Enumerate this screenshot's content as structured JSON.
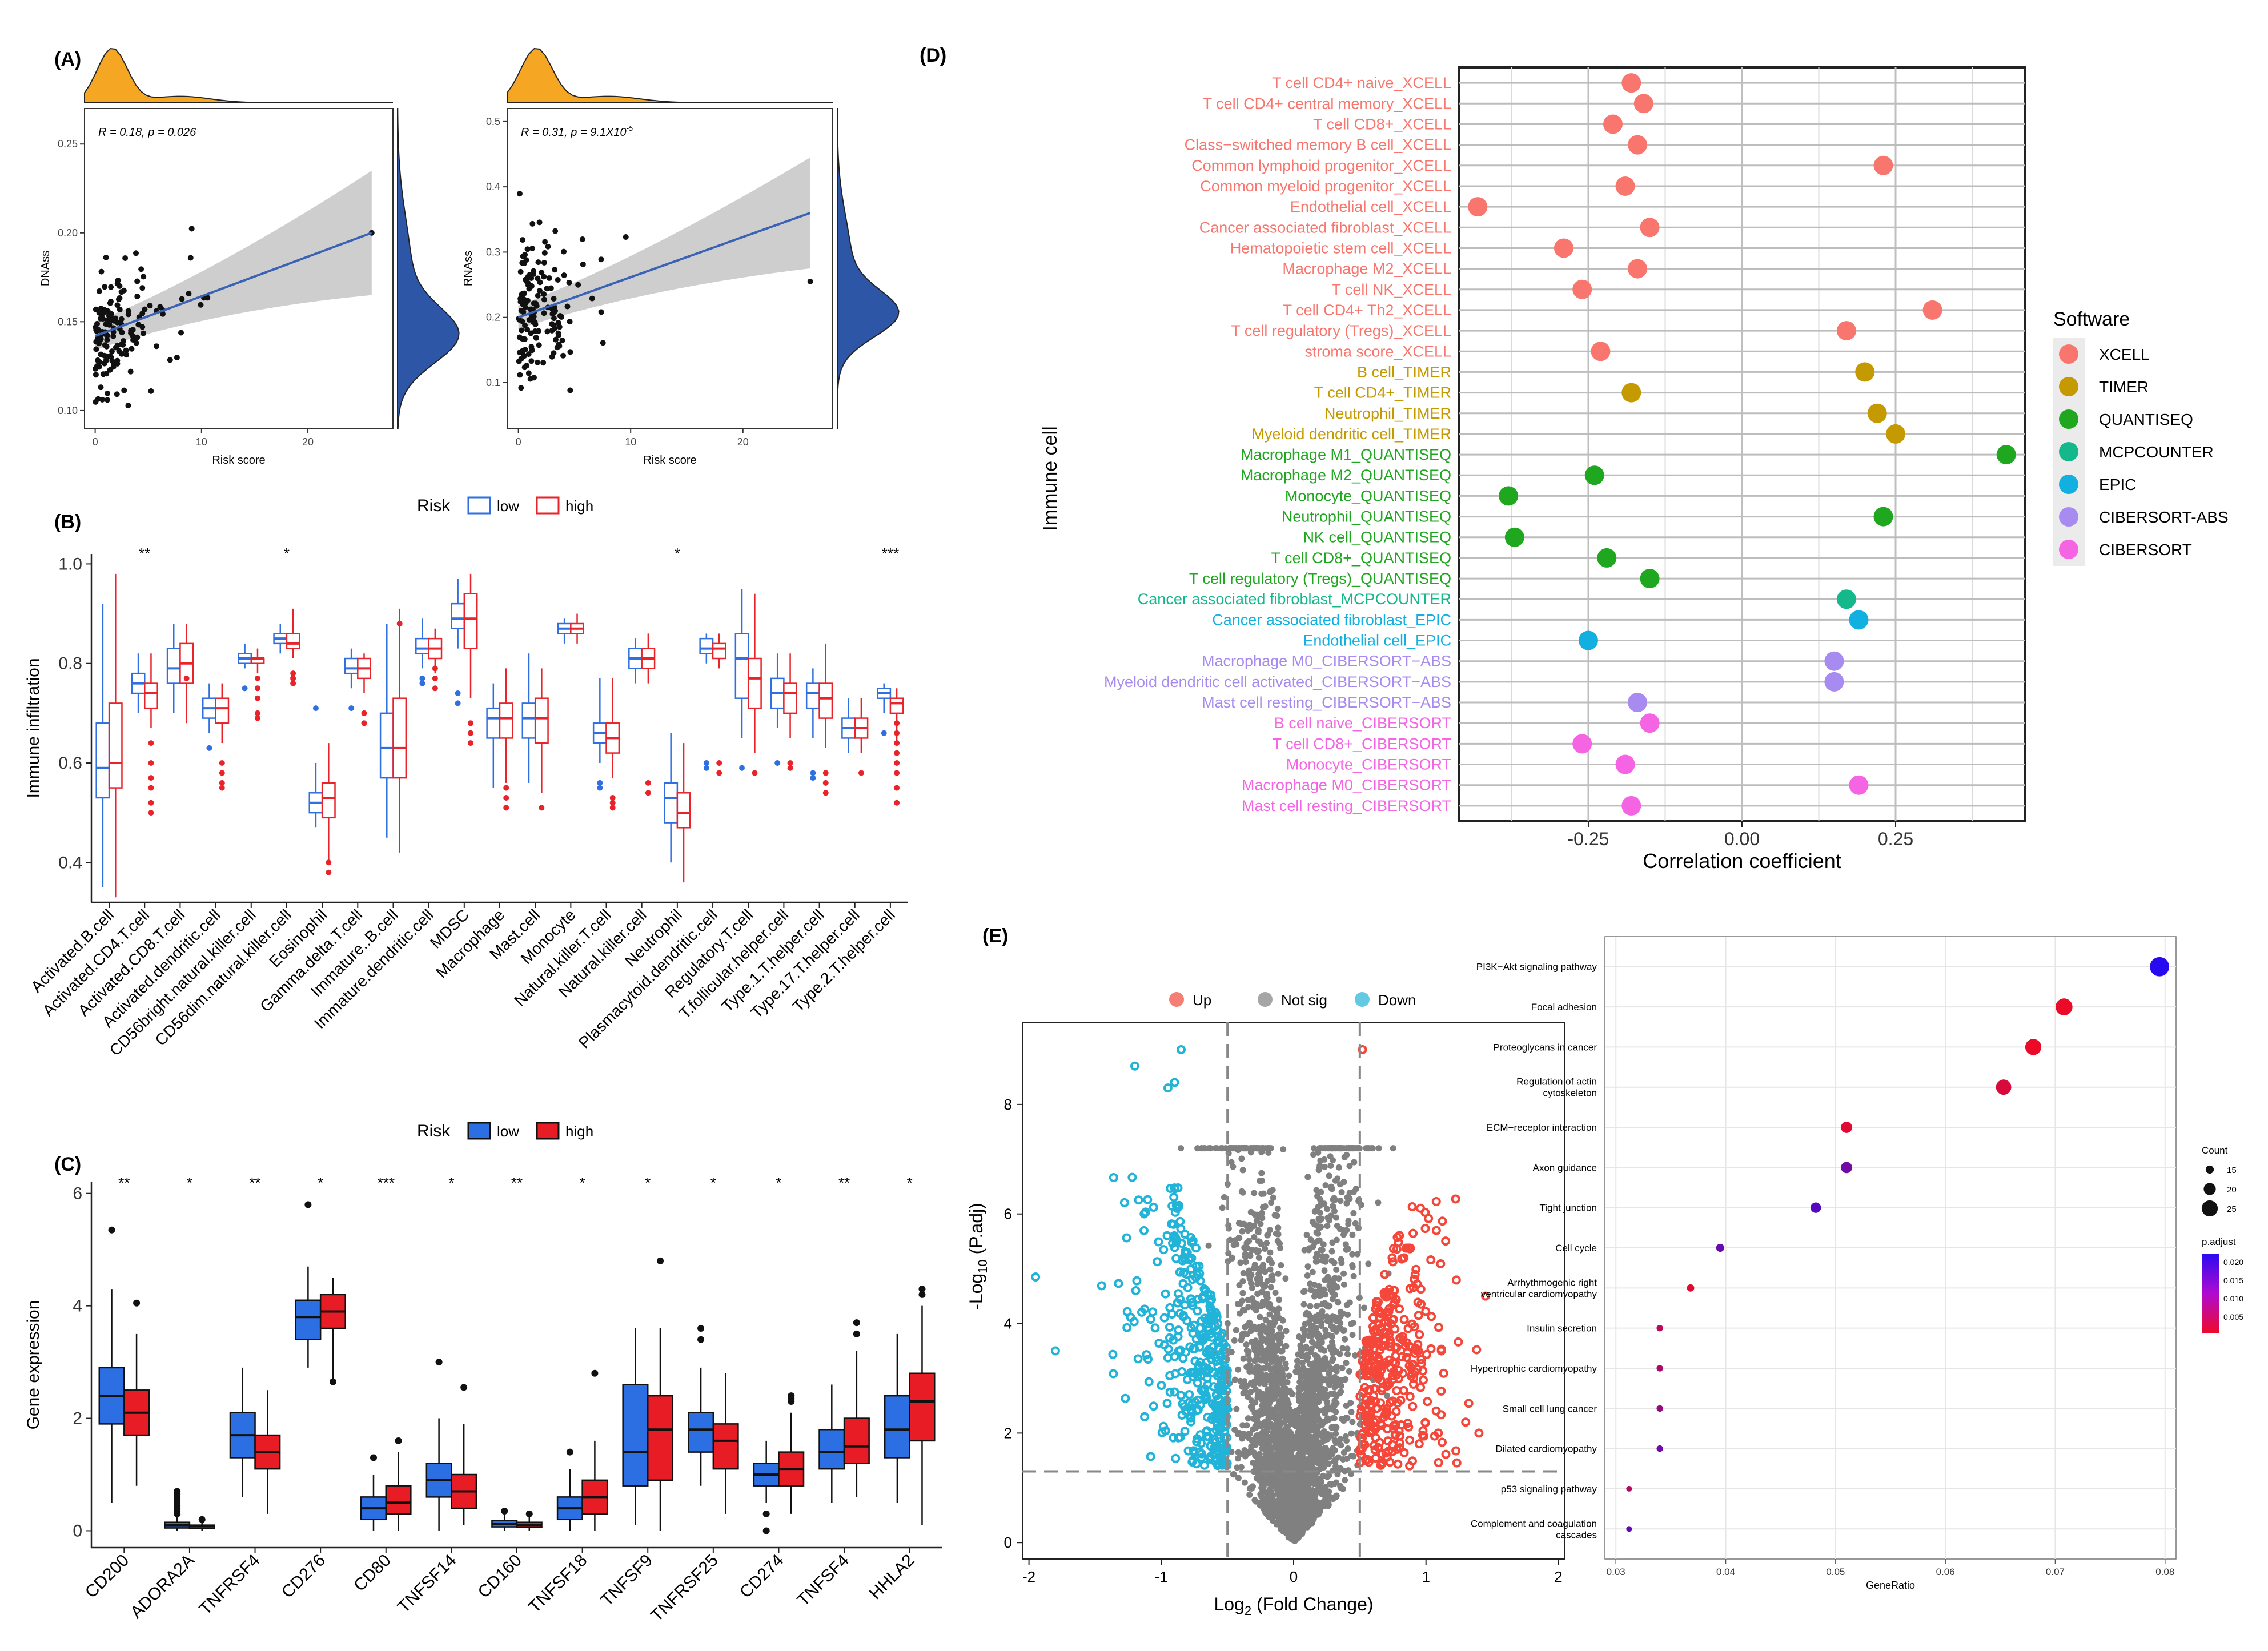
{
  "panels": {
    "A": "(A)",
    "B": "(B)",
    "C": "(C)",
    "D": "(D)",
    "E": "(E)"
  },
  "colors": {
    "orange": "#f5a623",
    "blue": "#2e56a6",
    "low_b": "#2f6fe0",
    "high_b": "#e8232a",
    "low_c": "#2b6fe3",
    "high_c": "#e81c25",
    "up": "#f4473a",
    "down": "#22b4d8",
    "ns": "#808080"
  },
  "chart_data": [
    {
      "id": "A1",
      "type": "scatter",
      "xlabel": "Risk score",
      "ylabel": "DNAss",
      "xlim": [
        -1,
        28
      ],
      "ylim": [
        0.09,
        0.27
      ],
      "xticks": [
        "0",
        "10",
        "20"
      ],
      "yticks": [
        "0.10",
        "0.15",
        "0.20",
        "0.25"
      ],
      "annotation_R": "R = 0.18,",
      "annotation_p": "p = 0.026",
      "fit": {
        "x0": 0,
        "y0": 0.142,
        "x1": 26,
        "y1": 0.2
      }
    },
    {
      "id": "A2",
      "type": "scatter",
      "xlabel": "Risk score",
      "ylabel": "RNAss",
      "xlim": [
        -1,
        28
      ],
      "ylim": [
        0.03,
        0.52
      ],
      "xticks": [
        "0",
        "10",
        "20"
      ],
      "yticks": [
        "0.1",
        "0.2",
        "0.3",
        "0.4",
        "0.5"
      ],
      "annotation_R": "R = 0.31,",
      "annotation_p": "p = 9.1X10",
      "annotation_exp": "-5",
      "fit": {
        "x0": 0,
        "y0": 0.2,
        "x1": 26,
        "y1": 0.36
      }
    },
    {
      "id": "B",
      "type": "box",
      "ylabel": "Immune infiltration",
      "ylim": [
        0.32,
        1.02
      ],
      "yticks": [
        "0.4",
        "0.6",
        "0.8",
        "1.0"
      ],
      "legend_title": "Risk",
      "legend": [
        "low",
        "high"
      ],
      "categories": [
        "Activated.B.cell",
        "Activated.CD4.T.cell",
        "Activated.CD8.T.cell",
        "Activated.dendritic.cell",
        "CD56bright.natural.killer.cell",
        "CD56dim.natural.killer.cell",
        "Eosinophil",
        "Gamma.delta.T.cell",
        "Immature..B.cell",
        "Immature.dendritic.cell",
        "MDSC",
        "Macrophage",
        "Mast.cell",
        "Monocyte",
        "Natural.killer.T.cell",
        "Natural.killer.cell",
        "Neutrophil",
        "Plasmacytoid.dendritic.cell",
        "Regulatory.T.cell",
        "T.follicular.helper.cell",
        "Type.1.T.helper.cell",
        "Type.17.T.helper.cell",
        "Type.2.T.helper.cell"
      ],
      "signif": [
        "",
        "**",
        "",
        "",
        "",
        "*",
        "",
        "",
        "",
        "",
        "",
        "",
        "",
        "",
        "",
        "",
        "*",
        "",
        "",
        "",
        "",
        "",
        "***"
      ],
      "low": [
        [
          0.35,
          0.53,
          0.59,
          0.68,
          0.92
        ],
        [
          0.7,
          0.74,
          0.76,
          0.78,
          0.82
        ],
        [
          0.7,
          0.76,
          0.79,
          0.83,
          0.88
        ],
        [
          0.66,
          0.69,
          0.71,
          0.73,
          0.76
        ],
        [
          0.79,
          0.8,
          0.81,
          0.82,
          0.84
        ],
        [
          0.82,
          0.84,
          0.85,
          0.86,
          0.88
        ],
        [
          0.47,
          0.5,
          0.52,
          0.54,
          0.6
        ],
        [
          0.75,
          0.78,
          0.79,
          0.81,
          0.83
        ],
        [
          0.45,
          0.57,
          0.63,
          0.7,
          0.88
        ],
        [
          0.79,
          0.82,
          0.83,
          0.85,
          0.89
        ],
        [
          0.83,
          0.87,
          0.89,
          0.92,
          0.97
        ],
        [
          0.55,
          0.65,
          0.69,
          0.71,
          0.76
        ],
        [
          0.56,
          0.65,
          0.69,
          0.72,
          0.82
        ],
        [
          0.84,
          0.86,
          0.87,
          0.88,
          0.89
        ],
        [
          0.6,
          0.64,
          0.66,
          0.68,
          0.77
        ],
        [
          0.76,
          0.79,
          0.81,
          0.83,
          0.85
        ],
        [
          0.4,
          0.48,
          0.53,
          0.56,
          0.66
        ],
        [
          0.8,
          0.82,
          0.83,
          0.85,
          0.86
        ],
        [
          0.65,
          0.73,
          0.81,
          0.86,
          0.95
        ],
        [
          0.67,
          0.71,
          0.74,
          0.77,
          0.82
        ],
        [
          0.65,
          0.71,
          0.74,
          0.76,
          0.79
        ],
        [
          0.62,
          0.65,
          0.67,
          0.69,
          0.73
        ],
        [
          0.7,
          0.73,
          0.74,
          0.75,
          0.76
        ]
      ],
      "high": [
        [
          0.33,
          0.55,
          0.6,
          0.72,
          0.98
        ],
        [
          0.67,
          0.71,
          0.74,
          0.76,
          0.82
        ],
        [
          0.68,
          0.76,
          0.8,
          0.84,
          0.88
        ],
        [
          0.64,
          0.68,
          0.71,
          0.73,
          0.76
        ],
        [
          0.78,
          0.8,
          0.81,
          0.81,
          0.83
        ],
        [
          0.81,
          0.83,
          0.84,
          0.86,
          0.91
        ],
        [
          0.4,
          0.49,
          0.53,
          0.56,
          0.64
        ],
        [
          0.74,
          0.77,
          0.79,
          0.81,
          0.82
        ],
        [
          0.42,
          0.57,
          0.63,
          0.73,
          0.91
        ],
        [
          0.78,
          0.81,
          0.83,
          0.85,
          0.87
        ],
        [
          0.73,
          0.83,
          0.89,
          0.94,
          0.98
        ],
        [
          0.56,
          0.65,
          0.69,
          0.72,
          0.79
        ],
        [
          0.54,
          0.64,
          0.69,
          0.73,
          0.79
        ],
        [
          0.84,
          0.86,
          0.87,
          0.88,
          0.9
        ],
        [
          0.57,
          0.62,
          0.65,
          0.68,
          0.77
        ],
        [
          0.76,
          0.79,
          0.81,
          0.83,
          0.86
        ],
        [
          0.36,
          0.47,
          0.5,
          0.54,
          0.64
        ],
        [
          0.79,
          0.81,
          0.83,
          0.84,
          0.86
        ],
        [
          0.62,
          0.71,
          0.77,
          0.81,
          0.94
        ],
        [
          0.65,
          0.7,
          0.74,
          0.76,
          0.82
        ],
        [
          0.63,
          0.69,
          0.73,
          0.76,
          0.84
        ],
        [
          0.62,
          0.65,
          0.67,
          0.69,
          0.73
        ],
        [
          0.64,
          0.7,
          0.72,
          0.73,
          0.75
        ]
      ],
      "out_low": [
        [],
        [],
        [],
        [
          0.63
        ],
        [
          0.75
        ],
        [],
        [
          0.71
        ],
        [
          0.71
        ],
        [],
        [
          0.76,
          0.77
        ],
        [
          0.74,
          0.72
        ],
        [],
        [],
        [],
        [
          0.55,
          0.56
        ],
        [],
        [],
        [
          0.59,
          0.6
        ],
        [
          0.59
        ],
        [
          0.6
        ],
        [
          0.58,
          0.57
        ],
        [],
        [
          0.66
        ]
      ],
      "out_high": [
        [],
        [
          0.64,
          0.6,
          0.57,
          0.55,
          0.52,
          0.5
        ],
        [
          0.77
        ],
        [
          0.6,
          0.58,
          0.56,
          0.55
        ],
        [
          0.77,
          0.75,
          0.73,
          0.7,
          0.69
        ],
        [
          0.78,
          0.77,
          0.76
        ],
        [
          0.4,
          0.38
        ],
        [
          0.7,
          0.68
        ],
        [
          0.88
        ],
        [
          0.79,
          0.77,
          0.75
        ],
        [
          0.68,
          0.66,
          0.64
        ],
        [
          0.55,
          0.53,
          0.51
        ],
        [
          0.51
        ],
        [],
        [
          0.52,
          0.51,
          0.53
        ],
        [
          0.56,
          0.54
        ],
        [],
        [
          0.6,
          0.58
        ],
        [
          0.58
        ],
        [
          0.59,
          0.6
        ],
        [
          0.54,
          0.56,
          0.58
        ],
        [
          0.58
        ],
        [
          0.68,
          0.66,
          0.64,
          0.62,
          0.6,
          0.58,
          0.55,
          0.52
        ]
      ]
    },
    {
      "id": "C",
      "type": "box",
      "ylabel": "Gene expression",
      "ylim": [
        -0.3,
        6.2
      ],
      "yticks": [
        "0",
        "2",
        "4",
        "6"
      ],
      "legend_title": "Risk",
      "legend": [
        "low",
        "high"
      ],
      "categories": [
        "CD200",
        "ADORA2A",
        "TNFRSF4",
        "CD276",
        "CD80",
        "TNFSF14",
        "CD160",
        "TNFSF18",
        "TNFSF9",
        "TNFRSF25",
        "CD274",
        "TNFSF4",
        "HHLA2"
      ],
      "signif": [
        "**",
        "*",
        "**",
        "*",
        "***",
        "*",
        "**",
        "*",
        "*",
        "*",
        "*",
        "**",
        "*"
      ],
      "low": [
        [
          0.5,
          1.9,
          2.4,
          2.9,
          4.3
        ],
        [
          0.0,
          0.05,
          0.1,
          0.15,
          0.25
        ],
        [
          0.6,
          1.3,
          1.7,
          2.1,
          2.9
        ],
        [
          2.9,
          3.4,
          3.8,
          4.1,
          4.7
        ],
        [
          0.0,
          0.2,
          0.4,
          0.6,
          1.0
        ],
        [
          0.0,
          0.6,
          0.9,
          1.2,
          2.0
        ],
        [
          0.0,
          0.07,
          0.12,
          0.18,
          0.3
        ],
        [
          0.0,
          0.2,
          0.4,
          0.6,
          1.1
        ],
        [
          0.1,
          0.8,
          1.4,
          2.6,
          3.6
        ],
        [
          0.8,
          1.4,
          1.8,
          2.1,
          2.9
        ],
        [
          0.5,
          0.8,
          1.0,
          1.2,
          1.6
        ],
        [
          0.5,
          1.1,
          1.4,
          1.8,
          2.6
        ],
        [
          0.5,
          1.3,
          1.8,
          2.4,
          3.5
        ]
      ],
      "high": [
        [
          0.8,
          1.7,
          2.1,
          2.5,
          3.5
        ],
        [
          0.0,
          0.04,
          0.08,
          0.1,
          0.15
        ],
        [
          0.3,
          1.1,
          1.4,
          1.7,
          2.5
        ],
        [
          2.7,
          3.6,
          3.9,
          4.2,
          4.5
        ],
        [
          0.0,
          0.3,
          0.5,
          0.8,
          1.4
        ],
        [
          0.1,
          0.4,
          0.7,
          1.0,
          1.9
        ],
        [
          0.0,
          0.06,
          0.1,
          0.15,
          0.25
        ],
        [
          0.0,
          0.3,
          0.6,
          0.9,
          1.6
        ],
        [
          0.0,
          0.9,
          1.8,
          2.4,
          3.6
        ],
        [
          0.3,
          1.1,
          1.6,
          1.9,
          2.8
        ],
        [
          0.3,
          0.8,
          1.1,
          1.4,
          2.1
        ],
        [
          0.6,
          1.2,
          1.5,
          2.0,
          3.2
        ],
        [
          0.1,
          1.6,
          2.3,
          2.8,
          4.0
        ]
      ],
      "out_low": [
        [
          5.35
        ],
        [
          0.3,
          0.35,
          0.4,
          0.45,
          0.5,
          0.55,
          0.6,
          0.65,
          0.7
        ],
        [],
        [
          5.8
        ],
        [
          1.3
        ],
        [
          3.0
        ],
        [
          0.35
        ],
        [
          1.4
        ],
        [],
        [
          3.4,
          3.6
        ],
        [
          0.3,
          0.0
        ],
        [],
        []
      ],
      "out_high": [
        [
          4.05
        ],
        [
          0.2
        ],
        [],
        [
          2.65
        ],
        [
          1.6
        ],
        [
          2.55
        ],
        [
          0.3
        ],
        [
          2.8
        ],
        [
          4.8
        ],
        [],
        [
          2.3,
          2.35,
          2.4
        ],
        [
          3.5,
          3.7
        ],
        [
          4.2,
          4.3
        ]
      ]
    },
    {
      "id": "D",
      "type": "scatter",
      "xlabel": "Correlation coefficient",
      "ylabel": "Immune cell",
      "xlim": [
        -0.46,
        0.46
      ],
      "xticks": [
        "-0.25",
        "0.00",
        "0.25"
      ],
      "legend_title": "Software",
      "legend": [
        "XCELL",
        "TIMER",
        "QUANTISEQ",
        "MCPCOUNTER",
        "EPIC",
        "CIBERSORT-ABS",
        "CIBERSORT"
      ],
      "legend_colors": [
        "#f8766d",
        "#c49a00",
        "#1fa71f",
        "#14b88a",
        "#12b0e0",
        "#a78bf0",
        "#f564e3"
      ],
      "labels": [
        "T cell CD4+ naive_XCELL",
        "T cell CD4+ central memory_XCELL",
        "T cell CD8+_XCELL",
        "Class−switched memory B cell_XCELL",
        "Common lymphoid progenitor_XCELL",
        "Common myeloid progenitor_XCELL",
        "Endothelial cell_XCELL",
        "Cancer associated fibroblast_XCELL",
        "Hematopoietic stem cell_XCELL",
        "Macrophage M2_XCELL",
        "T cell NK_XCELL",
        "T cell CD4+ Th2_XCELL",
        "T cell regulatory (Tregs)_XCELL",
        "stroma score_XCELL",
        "B cell_TIMER",
        "T cell CD4+_TIMER",
        "Neutrophil_TIMER",
        "Myeloid dendritic cell_TIMER",
        "Macrophage M1_QUANTISEQ",
        "Macrophage M2_QUANTISEQ",
        "Monocyte_QUANTISEQ",
        "Neutrophil_QUANTISEQ",
        "NK cell_QUANTISEQ",
        "T cell CD8+_QUANTISEQ",
        "T cell regulatory (Tregs)_QUANTISEQ",
        "Cancer associated fibroblast_MCPCOUNTER",
        "Cancer associated fibroblast_EPIC",
        "Endothelial cell_EPIC",
        "Macrophage M0_CIBERSORT−ABS",
        "Myeloid dendritic cell activated_CIBERSORT−ABS",
        "Mast cell resting_CIBERSORT−ABS",
        "B cell naive_CIBERSORT",
        "T cell CD8+_CIBERSORT",
        "Monocyte_CIBERSORT",
        "Macrophage M0_CIBERSORT",
        "Mast cell resting_CIBERSORT"
      ],
      "groups": [
        0,
        0,
        0,
        0,
        0,
        0,
        0,
        0,
        0,
        0,
        0,
        0,
        0,
        0,
        1,
        1,
        1,
        1,
        2,
        2,
        2,
        2,
        2,
        2,
        2,
        3,
        4,
        4,
        5,
        5,
        5,
        6,
        6,
        6,
        6,
        6
      ],
      "values": [
        -0.18,
        -0.16,
        -0.21,
        -0.17,
        0.23,
        -0.19,
        -0.43,
        -0.15,
        -0.29,
        -0.17,
        -0.26,
        0.31,
        0.17,
        -0.23,
        0.2,
        -0.18,
        0.22,
        0.25,
        0.43,
        -0.24,
        -0.38,
        0.23,
        -0.37,
        -0.22,
        -0.15,
        0.17,
        0.19,
        -0.25,
        0.15,
        0.15,
        -0.17,
        -0.15,
        -0.26,
        -0.19,
        0.19,
        -0.18
      ]
    },
    {
      "id": "E1",
      "type": "scatter",
      "xlabel": "Log",
      "xlabel_sub": "2",
      "xlabel_rest": " (Fold Change)",
      "ylabel": "-Log",
      "ylabel_sub": "10",
      "ylabel_rest": " (P.adj)",
      "xlim": [
        -2.05,
        2.05
      ],
      "ylim": [
        -0.3,
        9.5
      ],
      "xticks": [
        "-2",
        "-1",
        "0",
        "1",
        "2"
      ],
      "yticks": [
        "0",
        "2",
        "4",
        "6",
        "8"
      ],
      "legend": [
        "Up",
        "Not sig",
        "Down"
      ],
      "thresholds": {
        "x": 0.5,
        "y": 1.3
      }
    },
    {
      "id": "E2",
      "type": "scatter",
      "xlabel": "GeneRatio",
      "xlim": [
        0.029,
        0.081
      ],
      "xticks": [
        "0.03",
        "0.04",
        "0.05",
        "0.06",
        "0.07",
        "0.08"
      ],
      "categories": [
        "PI3K−Akt signaling pathway",
        "Focal adhesion",
        "Proteoglycans in cancer",
        "Regulation of actin cytoskeleton",
        "ECM−receptor interaction",
        "Axon guidance",
        "Tight junction",
        "Cell cycle",
        "Arrhythmogenic right ventricular cardiomyopathy",
        "Insulin secretion",
        "Hypertrophic cardiomyopathy",
        "Small cell lung cancer",
        "Dilated cardiomyopathy",
        "p53 signaling pathway",
        "Complement and coagulation cascades"
      ],
      "gene_ratio": [
        0.0795,
        0.0708,
        0.068,
        0.0653,
        0.051,
        0.051,
        0.0482,
        0.0395,
        0.0368,
        0.034,
        0.034,
        0.034,
        0.034,
        0.0312,
        0.0312
      ],
      "count": [
        29,
        26,
        25,
        24,
        19,
        19,
        18,
        15,
        14,
        13,
        13,
        13,
        13,
        12,
        12
      ],
      "p_adjust": [
        0.022,
        0.001,
        0.001,
        0.003,
        0.002,
        0.014,
        0.017,
        0.015,
        0.002,
        0.006,
        0.008,
        0.01,
        0.014,
        0.007,
        0.016
      ],
      "size_legend_title": "Count",
      "size_legend": [
        "15",
        "20",
        "25"
      ],
      "color_legend_title": "p.adjust",
      "color_legend": [
        "0.020",
        "0.015",
        "0.010",
        "0.005"
      ]
    }
  ]
}
